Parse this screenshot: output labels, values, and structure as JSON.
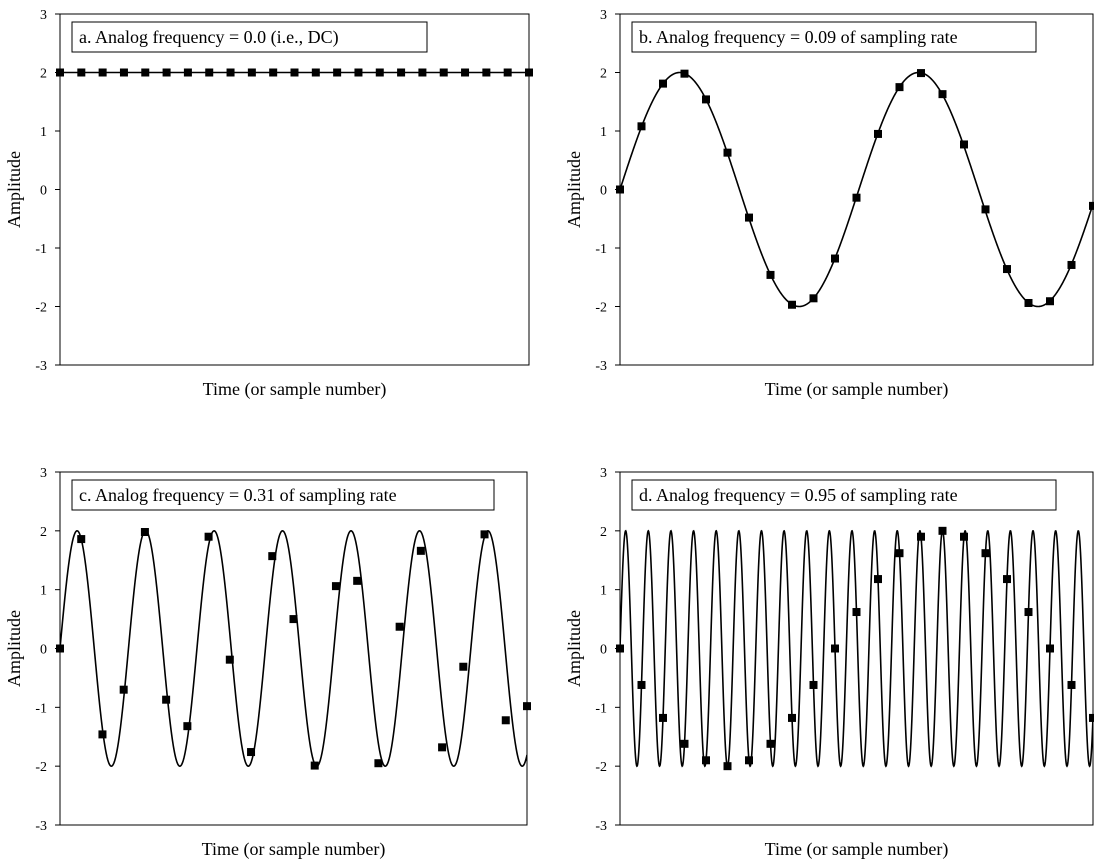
{
  "figure": {
    "colors": {
      "line": "#000000",
      "marker": "#000000",
      "background": "#ffffff"
    }
  },
  "chart_data": [
    {
      "type": "line",
      "title": "a.  Analog frequency = 0.0  (i.e., DC)",
      "xlabel": "Time (or sample number)",
      "ylabel": "Amplitude",
      "ylim": [
        -3,
        3
      ],
      "xlim": [
        0,
        22
      ],
      "grid": false,
      "y_ticks": [
        "3",
        "2",
        "1",
        "0",
        "-1",
        "-2",
        "-3"
      ],
      "frequency": 0.0,
      "series": [
        {
          "kind": "analog-line",
          "amplitude": 2,
          "frequency": 0.0,
          "phase": "dc"
        },
        {
          "kind": "samples",
          "x": [
            0,
            1,
            2,
            3,
            4,
            5,
            6,
            7,
            8,
            9,
            10,
            11,
            12,
            13,
            14,
            15,
            16,
            17,
            18,
            19,
            20,
            21,
            22
          ],
          "values": [
            2,
            2,
            2,
            2,
            2,
            2,
            2,
            2,
            2,
            2,
            2,
            2,
            2,
            2,
            2,
            2,
            2,
            2,
            2,
            2,
            2,
            2,
            2
          ]
        }
      ]
    },
    {
      "type": "line",
      "title": "b.  Analog frequency = 0.09 of sampling rate",
      "xlabel": "Time (or sample number)",
      "ylabel": "Amplitude",
      "ylim": [
        -3,
        3
      ],
      "xlim": [
        0,
        22
      ],
      "grid": false,
      "y_ticks": [
        "3",
        "2",
        "1",
        "0",
        "-1",
        "-2",
        "-3"
      ],
      "frequency": 0.09,
      "series": [
        {
          "kind": "analog-line",
          "amplitude": 2,
          "frequency": 0.09,
          "phase": "sine"
        },
        {
          "kind": "samples",
          "x": [
            0,
            1,
            2,
            3,
            4,
            5,
            6,
            7,
            8,
            9,
            10,
            11,
            12,
            13,
            14,
            15,
            16,
            17,
            18,
            19,
            20,
            21,
            22
          ],
          "values": [
            0,
            1.08,
            1.81,
            1.98,
            1.54,
            0.63,
            -0.48,
            -1.46,
            -1.97,
            -1.86,
            -1.18,
            -0.14,
            0.95,
            1.75,
            1.99,
            1.63,
            0.77,
            -0.34,
            -1.36,
            -1.94,
            -1.91,
            -1.29,
            -0.28
          ]
        }
      ]
    },
    {
      "type": "line",
      "title": "c.  Analog frequency = 0.31 of sampling rate",
      "xlabel": "Time (or sample number)",
      "ylabel": "Amplitude",
      "ylim": [
        -3,
        3
      ],
      "xlim": [
        0,
        22
      ],
      "grid": false,
      "y_ticks": [
        "3",
        "2",
        "1",
        "0",
        "-1",
        "-2",
        "-3"
      ],
      "frequency": 0.31,
      "series": [
        {
          "kind": "analog-line",
          "amplitude": 2,
          "frequency": 0.31,
          "phase": "sine"
        },
        {
          "kind": "samples",
          "x": [
            0,
            1,
            2,
            3,
            4,
            5,
            6,
            7,
            8,
            9,
            10,
            11,
            12,
            13,
            14,
            15,
            16,
            17,
            18,
            19,
            20,
            21,
            22
          ],
          "values": [
            0,
            1.86,
            -1.46,
            -0.7,
            1.98,
            -0.87,
            -1.32,
            1.9,
            -0.19,
            -1.76,
            1.57,
            0.5,
            -1.99,
            1.06,
            1.15,
            -1.95,
            0.37,
            1.66,
            -1.68,
            -0.31,
            1.94,
            -1.22,
            -0.98
          ]
        }
      ]
    },
    {
      "type": "line",
      "title": "d.  Analog frequency = 0.95 of sampling rate",
      "xlabel": "Time (or sample number)",
      "ylabel": "Amplitude",
      "ylim": [
        -3,
        3
      ],
      "xlim": [
        0,
        22
      ],
      "grid": false,
      "y_ticks": [
        "3",
        "2",
        "1",
        "0",
        "-1",
        "-2",
        "-3"
      ],
      "frequency": 0.95,
      "series": [
        {
          "kind": "analog-line",
          "amplitude": 2,
          "frequency": 0.95,
          "phase": "sine"
        },
        {
          "kind": "samples",
          "x": [
            0,
            1,
            2,
            3,
            4,
            5,
            6,
            7,
            8,
            9,
            10,
            11,
            12,
            13,
            14,
            15,
            16,
            17,
            18,
            19,
            20,
            21,
            22
          ],
          "values": [
            0,
            -0.62,
            -1.18,
            -1.62,
            -1.9,
            -2.0,
            -1.9,
            -1.62,
            -1.18,
            -0.62,
            0,
            0.62,
            1.18,
            1.62,
            1.9,
            2.0,
            1.9,
            1.62,
            1.18,
            0.62,
            0,
            -0.62,
            -1.18
          ]
        }
      ]
    }
  ]
}
